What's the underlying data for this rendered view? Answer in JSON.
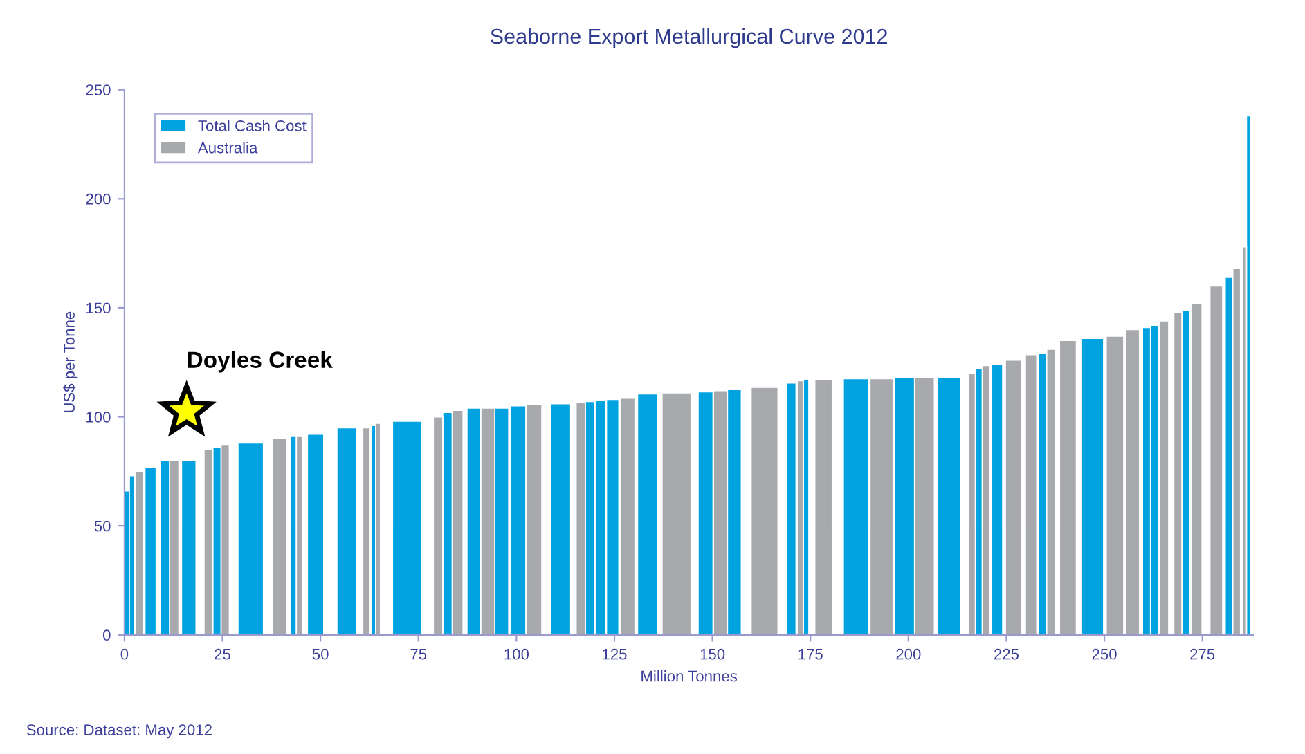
{
  "chart_data": {
    "type": "bar",
    "title": "Seaborne Export Metallurgical Curve 2012",
    "xlabel": "Million Tonnes",
    "ylabel": "US$ per Tonne",
    "x": [
      0.6,
      1.9,
      3.8,
      6.65,
      10.35,
      12.7,
      16.4,
      21.4,
      23.6,
      25.7,
      32.2,
      39.55,
      43.1,
      44.6,
      48.75,
      56.7,
      61.7,
      63.5,
      64.7,
      72.05,
      80,
      82.4,
      85.05,
      89.15,
      92.7,
      96.25,
      100.4,
      104.45,
      111.25,
      116.4,
      118.75,
      121.4,
      124.55,
      128.35,
      133.45,
      140.85,
      148.25,
      152.05,
      155.6,
      163.3,
      170.15,
      172.5,
      173.9,
      178.35,
      186.65,
      193.15,
      199.05,
      204.1,
      210.3,
      216.2,
      217.95,
      219.85,
      222.65,
      226.85,
      231.3,
      234.2,
      236.4,
      240.7,
      246.9,
      252.7,
      257.15,
      260.75,
      262.8,
      265.2,
      268.75,
      270.8,
      273.55,
      278.55,
      281.8,
      283.75,
      285.7,
      286.8
    ],
    "series": [
      {
        "name": "Total Cash Cost",
        "color": "#00a3e0",
        "values": [
          66,
          73,
          null,
          77,
          80,
          null,
          80,
          null,
          86,
          null,
          88,
          null,
          91,
          null,
          92,
          95,
          null,
          96,
          null,
          98,
          null,
          102,
          null,
          104,
          null,
          104,
          105,
          null,
          106,
          null,
          107,
          107.5,
          108,
          null,
          110.5,
          null,
          111.5,
          null,
          112.5,
          null,
          115.5,
          null,
          117,
          null,
          117.5,
          null,
          118,
          null,
          118,
          null,
          122,
          null,
          124,
          null,
          null,
          129,
          null,
          null,
          136,
          null,
          null,
          141,
          142,
          null,
          null,
          149,
          null,
          null,
          164,
          null,
          null,
          238
        ]
      },
      {
        "name": "Australia",
        "color": "#a7a9ac",
        "values": [
          null,
          null,
          75,
          null,
          null,
          80,
          null,
          85,
          null,
          87,
          null,
          90,
          null,
          91,
          null,
          null,
          95,
          null,
          97,
          null,
          100,
          null,
          103,
          null,
          104,
          null,
          null,
          105.5,
          null,
          106.5,
          null,
          null,
          null,
          108.5,
          null,
          111,
          null,
          112,
          null,
          113.5,
          null,
          116.5,
          null,
          117,
          null,
          117.5,
          null,
          118,
          null,
          120,
          null,
          123.5,
          null,
          126,
          128.5,
          null,
          131,
          135,
          null,
          137,
          140,
          null,
          null,
          144,
          148,
          null,
          152,
          160,
          null,
          168,
          178,
          null
        ]
      }
    ],
    "xlim": [
      0,
      288
    ],
    "ylim": [
      0,
      250
    ],
    "xticks": [
      0,
      25,
      50,
      75,
      100,
      125,
      150,
      175,
      200,
      225,
      250,
      275
    ],
    "yticks": [
      0,
      50,
      100,
      150,
      200,
      250
    ],
    "grid": false,
    "legend": "top left",
    "annotations": [
      "Doyles Creek",
      "Source: Dataset: May 2012"
    ]
  }
}
